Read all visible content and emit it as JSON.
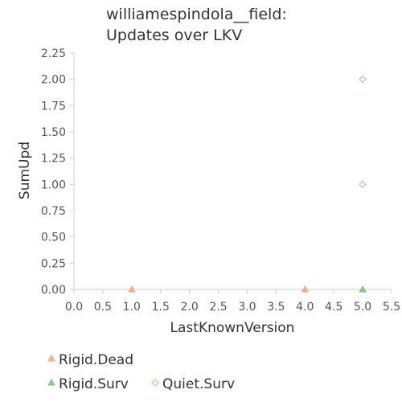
{
  "chart_data": {
    "type": "scatter",
    "title": [
      "williamespindola__field:",
      "Updates over LKV"
    ],
    "xlabel": "LastKnownVersion",
    "ylabel": "SumUpd",
    "xlim": [
      0,
      5.5
    ],
    "ylim": [
      0,
      2.25
    ],
    "x_ticks": [
      "0.0",
      "0.5",
      "1.0",
      "1.5",
      "2.0",
      "2.5",
      "3.0",
      "3.5",
      "4.0",
      "4.5",
      "5.0",
      "5.5"
    ],
    "y_ticks": [
      "0.00",
      "0.25",
      "0.50",
      "0.75",
      "1.00",
      "1.25",
      "1.50",
      "1.75",
      "2.00",
      "2.25"
    ],
    "grid": false,
    "legend_position": "bottom-left",
    "series": [
      {
        "name": "Rigid.Dead",
        "marker": "triangle",
        "color": "#f4a582",
        "points": [
          {
            "x": 1,
            "y": 0
          },
          {
            "x": 4,
            "y": 0
          }
        ]
      },
      {
        "name": "Rigid.Surv",
        "marker": "triangle",
        "color": "#7fbf7b",
        "points": [
          {
            "x": 5,
            "y": 0
          }
        ]
      },
      {
        "name": "Quiet.Surv",
        "marker": "diamond",
        "color": "#a6dba0",
        "points": [
          {
            "x": 5,
            "y": 1
          },
          {
            "x": 5,
            "y": 2
          }
        ]
      }
    ]
  }
}
